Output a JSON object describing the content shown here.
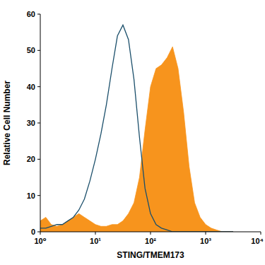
{
  "chart_data": {
    "type": "histogram",
    "x_label": "STING/TMEM173",
    "y_label": "Relative Cell Number",
    "log": "x",
    "xlim": [
      1,
      10000
    ],
    "xticks": [
      {
        "value": 1,
        "label": "10⁰"
      },
      {
        "value": 10,
        "label": "10¹"
      },
      {
        "value": 100,
        "label": "10²"
      },
      {
        "value": 1000,
        "label": "10³"
      },
      {
        "value": 10000,
        "label": "10⁴"
      }
    ],
    "ylim": [
      0,
      60
    ],
    "yticks": [
      0,
      10,
      20,
      30,
      40,
      50,
      60
    ],
    "x": [
      1,
      1.26,
      1.58,
      2,
      2.51,
      3.16,
      3.98,
      5.01,
      6.31,
      7.94,
      10,
      12.6,
      15.8,
      20,
      25.1,
      31.6,
      39.8,
      50.1,
      63.1,
      79.4,
      100,
      126,
      158,
      200,
      251,
      316,
      398,
      501,
      631,
      794,
      1000,
      1260,
      1580,
      2000,
      2510,
      3160
    ],
    "series": [
      {
        "type": "area",
        "color": "#f7941d",
        "values": [
          3,
          4,
          2,
          1.5,
          2,
          3,
          4,
          5,
          4,
          3,
          2,
          1.5,
          1.5,
          2,
          2,
          3,
          5,
          8,
          15,
          28,
          40,
          45,
          46,
          48,
          51,
          45,
          33,
          18,
          8,
          4,
          2,
          1,
          0.5,
          0,
          0,
          0
        ]
      },
      {
        "type": "line",
        "color": "#1b4f6b",
        "values": [
          1,
          1,
          1.5,
          2,
          2,
          3,
          4,
          6,
          9,
          14,
          20,
          27,
          35,
          45,
          54,
          57,
          53,
          42,
          26,
          12,
          5,
          2,
          1,
          0.5,
          0,
          0,
          0,
          0,
          0,
          0,
          0,
          0,
          0,
          0,
          0,
          0
        ]
      }
    ]
  }
}
